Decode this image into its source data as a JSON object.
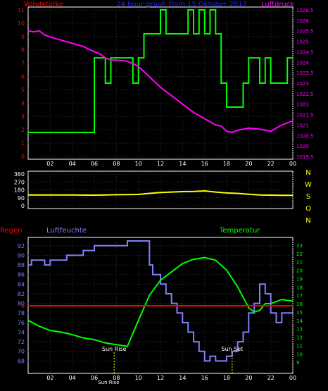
{
  "chart_data": [
    {
      "type": "line",
      "title": "24 hour graph from  15 Oktober 2017",
      "left_label": "Windstärke",
      "right_label": "Luftdruck",
      "x_ticks": [
        "02",
        "04",
        "06",
        "08",
        "10",
        "12",
        "14",
        "16",
        "18",
        "20",
        "22",
        "00"
      ],
      "y_left_ticks": [
        "0",
        "1",
        "2",
        "3",
        "4",
        "5",
        "6",
        "7",
        "8",
        "9",
        "10",
        "11"
      ],
      "y_right_ticks": [
        "1019.5",
        "1020",
        "1020.5",
        "1021",
        "1021.5",
        "1022",
        "1022.5",
        "1023",
        "1023.5",
        "1024",
        "1024.5",
        "1025",
        "1025.5",
        "1026",
        "1026.5"
      ],
      "ylim_left": [
        0,
        11
      ],
      "ylim_right": [
        1019.5,
        1026.5
      ],
      "xlim": [
        0,
        24
      ],
      "grid": true,
      "colors": {
        "wind": "#00ff00",
        "pressure": "#ff00ff",
        "title": "#2222ff",
        "axis": "#ffffff"
      },
      "series": [
        {
          "name": "Windstärke",
          "axis": "left",
          "step": true,
          "x": [
            0,
            6,
            7,
            7.5,
            8,
            9.5,
            10,
            10.5,
            11,
            12,
            12.5,
            13,
            14,
            14.5,
            15,
            15.5,
            16,
            16.5,
            17,
            17.5,
            18,
            19,
            19.5,
            20,
            21,
            21.5,
            22,
            23,
            23.5,
            24
          ],
          "values": [
            1.8,
            7.4,
            5.5,
            7.4,
            7.4,
            5.5,
            7.4,
            9.2,
            9.2,
            11,
            9.2,
            9.2,
            9.2,
            11,
            9.2,
            11,
            9.2,
            11,
            9.2,
            5.5,
            3.7,
            3.7,
            5.5,
            7.4,
            5.5,
            7.4,
            5.5,
            5.5,
            7.4,
            7.4
          ]
        },
        {
          "name": "Luftdruck",
          "axis": "right",
          "x": [
            0,
            0.5,
            1,
            1.5,
            2,
            3,
            4,
            5,
            6,
            6.5,
            7,
            7.5,
            8,
            9,
            10,
            11,
            12,
            13,
            14,
            15,
            16,
            17,
            17.5,
            18,
            18.5,
            19,
            20,
            21,
            22,
            23,
            24
          ],
          "values": [
            1025.5,
            1025.45,
            1025.5,
            1025.3,
            1025.2,
            1025.05,
            1024.9,
            1024.75,
            1024.5,
            1024.4,
            1024.2,
            1024.1,
            1024.1,
            1024.05,
            1023.8,
            1023.3,
            1022.8,
            1022.4,
            1022.0,
            1021.6,
            1021.3,
            1021.0,
            1020.95,
            1020.7,
            1020.65,
            1020.75,
            1020.85,
            1020.8,
            1020.7,
            1021.0,
            1021.2
          ]
        }
      ]
    },
    {
      "type": "line",
      "x_ticks": [
        "02",
        "04",
        "06",
        "08",
        "10",
        "12",
        "14",
        "16",
        "18",
        "20",
        "22",
        "00"
      ],
      "y_left_ticks": [
        "0",
        "90",
        "180",
        "270",
        "360"
      ],
      "right_labels": [
        "N",
        "W",
        "S",
        "O",
        "N"
      ],
      "ylim_left": [
        0,
        360
      ],
      "xlim": [
        0,
        24
      ],
      "grid": true,
      "colors": {
        "direction": "#ffff00",
        "axis": "#ffffff",
        "right_labels": "#ffff00"
      },
      "series": [
        {
          "name": "Wind direction",
          "axis": "left",
          "x": [
            0,
            2,
            4,
            6,
            7,
            8,
            9,
            10,
            11,
            12,
            13,
            14,
            15,
            16,
            17,
            18,
            19,
            20,
            21,
            22,
            23,
            24
          ],
          "values": [
            122,
            122,
            122,
            120,
            122,
            125,
            126,
            128,
            140,
            150,
            155,
            160,
            162,
            168,
            155,
            145,
            140,
            130,
            122,
            120,
            118,
            118
          ]
        }
      ]
    },
    {
      "type": "line",
      "labels": {
        "regen": "Regen",
        "luftfeuchte": "Luftfeuchte",
        "temperatur": "Temperatur"
      },
      "x_ticks": [
        "02",
        "04",
        "06",
        "08",
        "10",
        "12",
        "14",
        "16",
        "18",
        "20",
        "22",
        "00"
      ],
      "y_left_ticks": [
        "68",
        "70",
        "72",
        "74",
        "76",
        "78",
        "80",
        "82",
        "84",
        "86",
        "88",
        "90",
        "92"
      ],
      "y_right_ticks": [
        "9",
        "10",
        "11",
        "12",
        "13",
        "14",
        "15",
        "16",
        "17",
        "18",
        "19",
        "20",
        "21",
        "22",
        "23"
      ],
      "regen_tick": "0",
      "ylim_left": [
        66,
        93
      ],
      "ylim_right": [
        8,
        23.5
      ],
      "xlim": [
        0,
        24
      ],
      "grid": true,
      "annotations": [
        {
          "text": "Sun Rise",
          "x": 7.8
        },
        {
          "text": "Sun Set",
          "x": 18.5
        },
        {
          "text": "Sun Rise",
          "x": 7.3,
          "position": "below-axis"
        }
      ],
      "colors": {
        "humidity": "#7f7fff",
        "temperature": "#00ff00",
        "rain": "#ff0000",
        "annotation": "#ffff00",
        "axis": "#ffffff"
      },
      "series": [
        {
          "name": "Luftfeuchte",
          "axis": "left",
          "step": true,
          "x": [
            0,
            0.3,
            1.5,
            2,
            3,
            3.5,
            4,
            4.5,
            5,
            5.5,
            6,
            7,
            9,
            11,
            11.3,
            12,
            12.5,
            13,
            13.5,
            14,
            14.5,
            15,
            15.5,
            16,
            16.5,
            17,
            17.5,
            18,
            18.5,
            19,
            19.5,
            20,
            20.5,
            21,
            21.5,
            22,
            22.5,
            23,
            23.5,
            24
          ],
          "values": [
            88,
            89,
            88,
            89,
            89,
            90,
            90,
            90,
            91,
            91,
            92,
            92,
            93,
            88,
            86,
            84,
            82,
            80,
            78,
            76,
            74,
            72,
            70,
            68,
            69,
            68,
            68,
            69,
            70,
            72,
            74,
            78,
            80,
            84,
            82,
            78,
            76,
            78,
            78,
            78
          ]
        },
        {
          "name": "Temperatur",
          "axis": "right",
          "x": [
            0,
            1,
            2,
            3,
            4,
            5,
            6,
            7,
            8,
            9,
            10,
            11,
            12,
            13,
            14,
            15,
            16,
            17,
            18,
            19,
            20,
            20.5,
            21,
            21.5,
            22,
            23,
            24
          ],
          "values": [
            14,
            13.3,
            12.8,
            12.6,
            12.3,
            11.9,
            11.7,
            11.3,
            11.1,
            10.9,
            14,
            17,
            18.8,
            19.8,
            20.8,
            21.3,
            21.5,
            21.2,
            20,
            18,
            15.5,
            15,
            15.2,
            16,
            16,
            16.5,
            16.3
          ]
        },
        {
          "name": "Regen",
          "axis": "regen",
          "x": [
            0,
            24
          ],
          "values": [
            0,
            0
          ]
        }
      ]
    }
  ]
}
